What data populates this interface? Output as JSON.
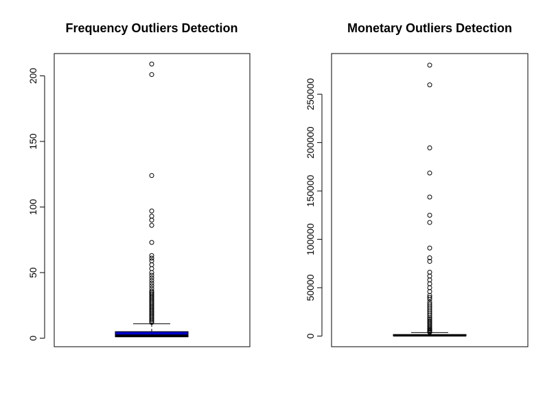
{
  "chart_data": [
    {
      "type": "boxplot",
      "title": "Frequency Outliers Detection",
      "xlabel": "",
      "ylabel": "",
      "ylim": [
        -6.5,
        217
      ],
      "y_ticks": [
        0,
        50,
        100,
        150,
        200
      ],
      "y_tick_labels": [
        "0",
        "50",
        "100",
        "150",
        "200"
      ],
      "box": {
        "min": 1,
        "q1": 1,
        "median": 2,
        "q3": 5,
        "whisker_high": 11
      },
      "box_color": "#0000cd",
      "outliers": [
        209,
        201,
        124,
        97,
        93,
        90,
        86,
        73,
        63,
        61,
        59,
        56,
        53,
        50,
        48,
        46,
        44,
        42,
        40,
        38,
        36,
        35,
        34,
        33,
        32,
        31,
        30,
        29,
        28,
        27,
        26,
        25,
        24,
        23,
        22,
        21,
        20,
        19,
        18,
        17,
        16,
        15,
        14,
        13,
        12
      ]
    },
    {
      "type": "boxplot",
      "title": "Monetary Outliers Detection",
      "xlabel": "",
      "ylabel": "",
      "ylim": [
        -11000,
        292000
      ],
      "y_ticks": [
        0,
        50000,
        100000,
        150000,
        200000,
        250000
      ],
      "y_tick_labels": [
        "0",
        "50000",
        "100000",
        "150000",
        "200000",
        "250000"
      ],
      "box": {
        "min": 0,
        "q1": 300,
        "median": 650,
        "q3": 1650,
        "whisker_high": 3600
      },
      "box_color": "#000000",
      "outliers": [
        280000,
        259600,
        194500,
        168500,
        143700,
        124900,
        117400,
        91000,
        80900,
        77200,
        66000,
        62000,
        58000,
        54000,
        50000,
        46000,
        42000,
        40000,
        38000,
        35000,
        33000,
        31000,
        29000,
        27000,
        25000,
        23000,
        21000,
        19000,
        17500,
        16000,
        14500,
        13000,
        11500,
        10000,
        8500,
        7500,
        6500,
        5500,
        4500,
        4000
      ]
    }
  ]
}
